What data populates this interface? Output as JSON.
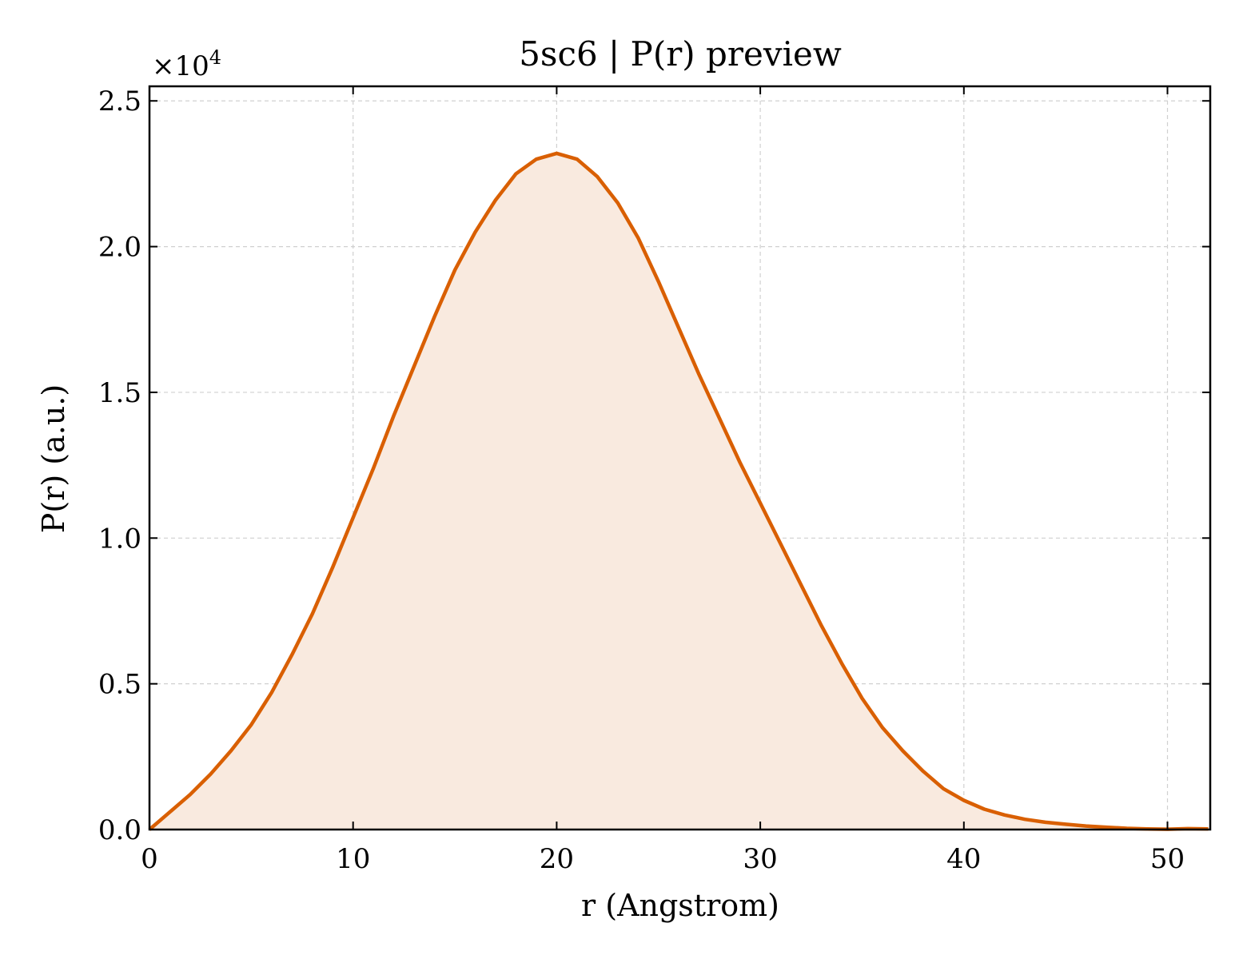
{
  "chart_data": {
    "type": "area",
    "title": "5sc6 | P(r) preview",
    "xlabel": "r (Angstrom)",
    "ylabel": "P(r) (a.u.)",
    "y_multiplier_label": "×10",
    "y_multiplier_exponent": "4",
    "xlim": [
      0,
      52.1
    ],
    "ylim": [
      0,
      2.55
    ],
    "xticks": [
      0,
      10,
      20,
      30,
      40,
      50
    ],
    "xtick_labels": [
      "0",
      "10",
      "20",
      "30",
      "40",
      "50"
    ],
    "yticks": [
      0,
      0.5,
      1.0,
      1.5,
      2.0,
      2.5
    ],
    "ytick_labels": [
      "0.0",
      "0.5",
      "1.0",
      "1.5",
      "2.0",
      "2.5"
    ],
    "grid": true,
    "line_color": "#d95f02",
    "fill_color": "#f9eadf",
    "series": [
      {
        "x": [
          0,
          1,
          2,
          3,
          4,
          5,
          6,
          7,
          8,
          9,
          10,
          11,
          12,
          13,
          14,
          15,
          16,
          17,
          18,
          19,
          20,
          21,
          22,
          23,
          24,
          25,
          26,
          27,
          28,
          29,
          30,
          31,
          32,
          33,
          34,
          35,
          36,
          37,
          38,
          39,
          40,
          41,
          42,
          43,
          44,
          45,
          46,
          47,
          48,
          49,
          50,
          51,
          52
        ],
        "y": [
          0,
          0.06,
          0.12,
          0.19,
          0.27,
          0.36,
          0.47,
          0.6,
          0.74,
          0.9,
          1.07,
          1.24,
          1.42,
          1.59,
          1.76,
          1.92,
          2.05,
          2.16,
          2.25,
          2.3,
          2.32,
          2.3,
          2.24,
          2.15,
          2.03,
          1.88,
          1.72,
          1.56,
          1.41,
          1.26,
          1.12,
          0.98,
          0.84,
          0.7,
          0.57,
          0.45,
          0.35,
          0.27,
          0.2,
          0.14,
          0.1,
          0.07,
          0.05,
          0.035,
          0.025,
          0.018,
          0.012,
          0.008,
          0.004,
          0.002,
          0.001,
          0.003,
          0.002
        ]
      }
    ]
  }
}
